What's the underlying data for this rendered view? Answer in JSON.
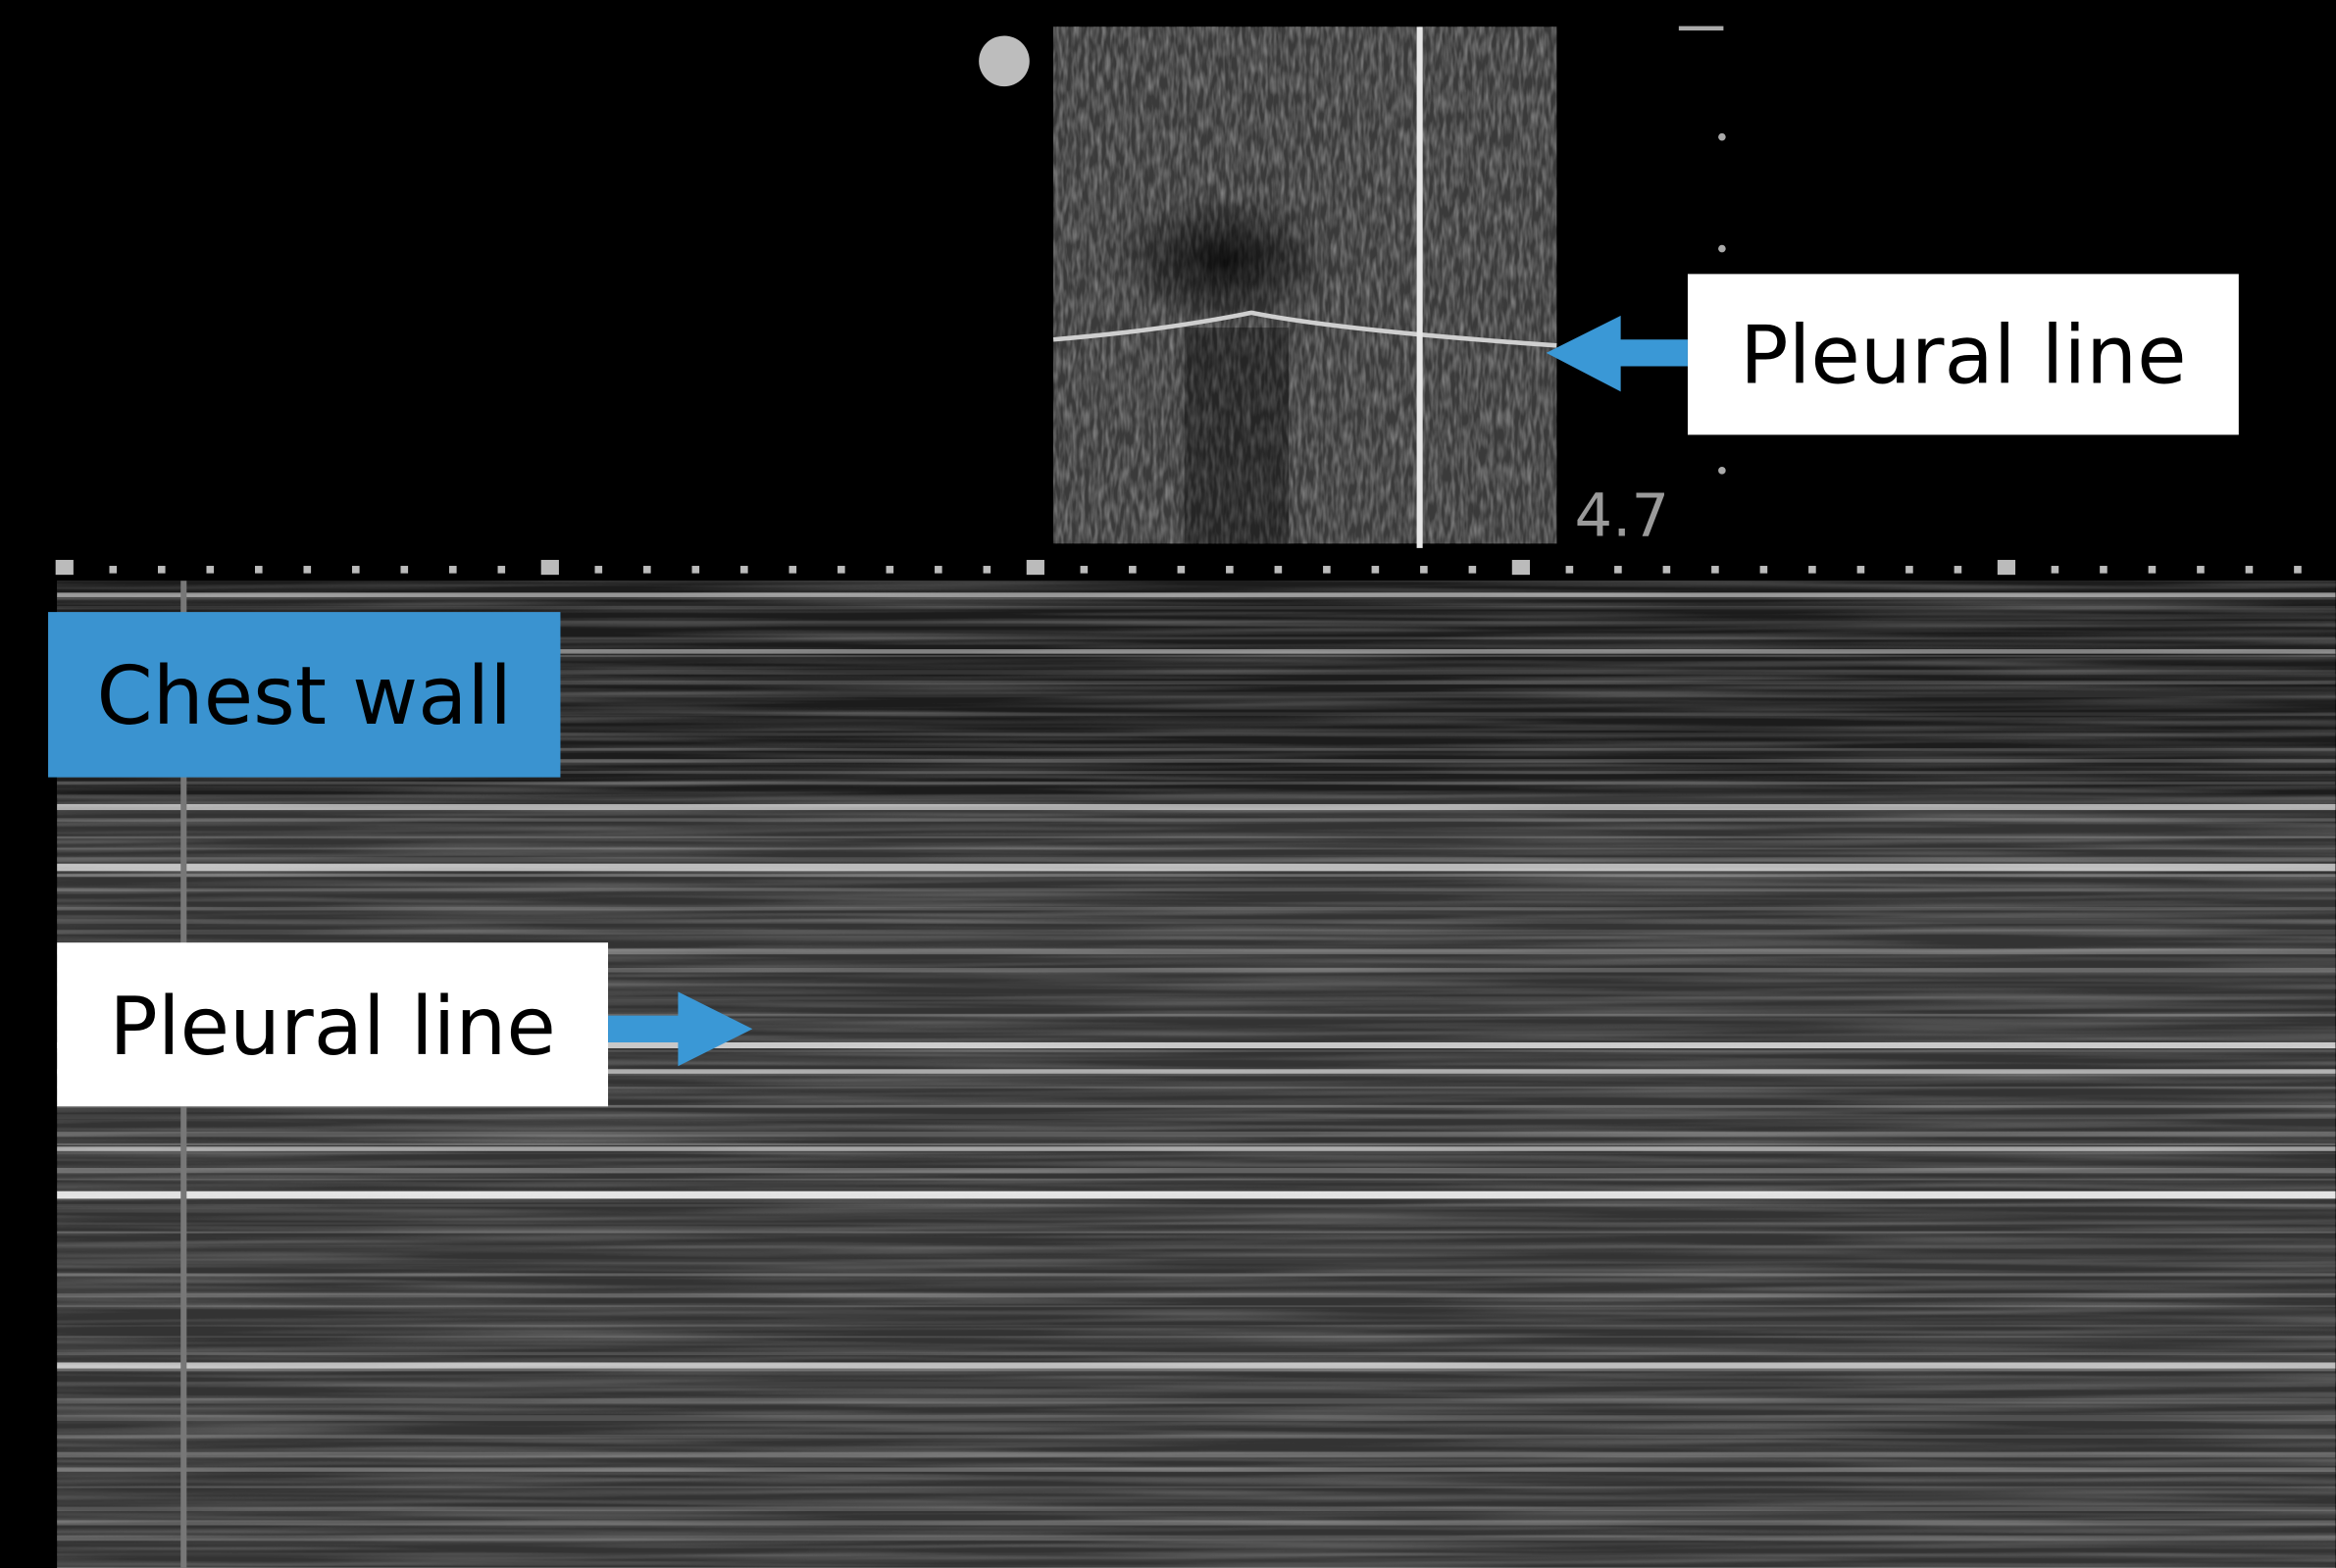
{
  "annotations": {
    "top_label": "Pleural line",
    "depth_label": "4.7",
    "chest_wall_label": "Chest wall",
    "bottom_label": "Pleural line"
  }
}
